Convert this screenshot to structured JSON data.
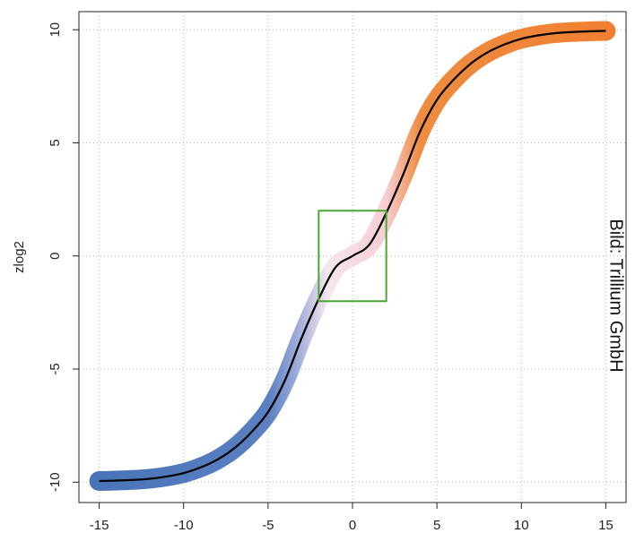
{
  "chart_data": {
    "type": "line",
    "y_label": "zlog2",
    "annotation": "Bild: Trillium GmbH",
    "x": [
      -15,
      -14,
      -13,
      -12,
      -11,
      -10,
      -9,
      -8,
      -7,
      -6,
      -5,
      -4,
      -3,
      -2,
      -1,
      0,
      1,
      2,
      3,
      4,
      5,
      6,
      7,
      8,
      9,
      10,
      11,
      12,
      13,
      14,
      15
    ],
    "series": [
      {
        "color": "#000000",
        "values": [
          -9.95,
          -9.93,
          -9.9,
          -9.85,
          -9.75,
          -9.6,
          -9.35,
          -9.0,
          -8.5,
          -7.8,
          -6.9,
          -5.5,
          -3.6,
          -1.9,
          -0.5,
          0,
          0.5,
          1.9,
          3.6,
          5.5,
          6.9,
          7.8,
          8.5,
          9.0,
          9.35,
          9.6,
          9.75,
          9.85,
          9.9,
          9.93,
          9.95
        ]
      }
    ],
    "band_gradient": [
      {
        "x": -15,
        "color": "#4a74b8"
      },
      {
        "x": -5,
        "color": "#5a80c2"
      },
      {
        "x": -3,
        "color": "#a9b4dc"
      },
      {
        "x": -1.5,
        "color": "#f6e6ee"
      },
      {
        "x": 2,
        "color": "#f7cdd2"
      },
      {
        "x": 4,
        "color": "#ee8c40"
      },
      {
        "x": 15,
        "color": "#f08030"
      }
    ],
    "highlight_box": {
      "x": [
        -2,
        2
      ],
      "y": [
        -2,
        2
      ],
      "color": "#4ca535"
    },
    "xlim": [
      -16.2,
      16.2
    ],
    "ylim": [
      -10.9,
      10.8
    ],
    "xticks": [
      -15,
      -10,
      -5,
      0,
      5,
      10,
      15
    ],
    "yticks": [
      -10,
      -5,
      0,
      5,
      10
    ],
    "grid": true
  }
}
